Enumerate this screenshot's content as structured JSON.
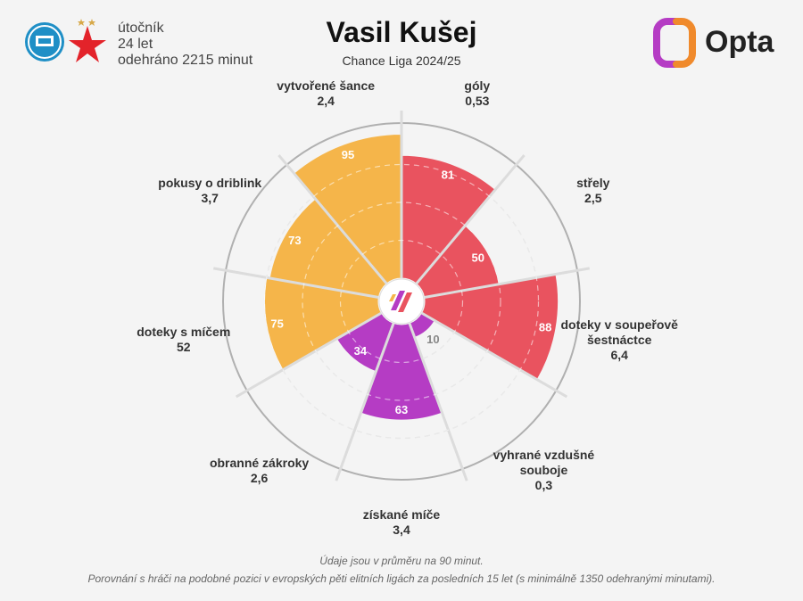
{
  "header": {
    "position": "útočník",
    "age": "24 let",
    "minutes": "odehráno 2215 minut",
    "player_name": "Vasil Kušej",
    "league": "Chance Liga 2024/25",
    "provider": "Opta"
  },
  "footer": {
    "note1": "Údaje jsou v průměru na 90 minut.",
    "note2": "Porovnání s hráči na podobné pozici v evropských pěti elitních ligách za posledních 15 let (s minimálně 1350 odehranými minutami)."
  },
  "colors": {
    "attack": "#e9535f",
    "possession": "#f5b54a",
    "defense": "#b53cc4",
    "ring": "#b0b0b0",
    "background": "#f4f4f4"
  },
  "chart_data": {
    "type": "polar-bar",
    "scale_max": 100,
    "metrics": [
      {
        "label": "góly",
        "value_text": "0,53",
        "percentile": 81,
        "group": "attack"
      },
      {
        "label": "střely",
        "value_text": "2,5",
        "percentile": 50,
        "group": "attack"
      },
      {
        "label": "doteky v soupeřově šestnáctce",
        "value_text": "6,4",
        "percentile": 88,
        "group": "attack"
      },
      {
        "label": "vyhrané vzdušné souboje",
        "value_text": "0,3",
        "percentile": 10,
        "group": "defense"
      },
      {
        "label": "získané míče",
        "value_text": "3,4",
        "percentile": 63,
        "group": "defense"
      },
      {
        "label": "obranné zákroky",
        "value_text": "2,6",
        "percentile": 34,
        "group": "defense"
      },
      {
        "label": "doteky s míčem",
        "value_text": "52",
        "percentile": 75,
        "group": "possession"
      },
      {
        "label": "pokusy o driblink",
        "value_text": "3,7",
        "percentile": 73,
        "group": "possession"
      },
      {
        "label": "vytvořené šance",
        "value_text": "2,4",
        "percentile": 95,
        "group": "possession"
      }
    ]
  }
}
